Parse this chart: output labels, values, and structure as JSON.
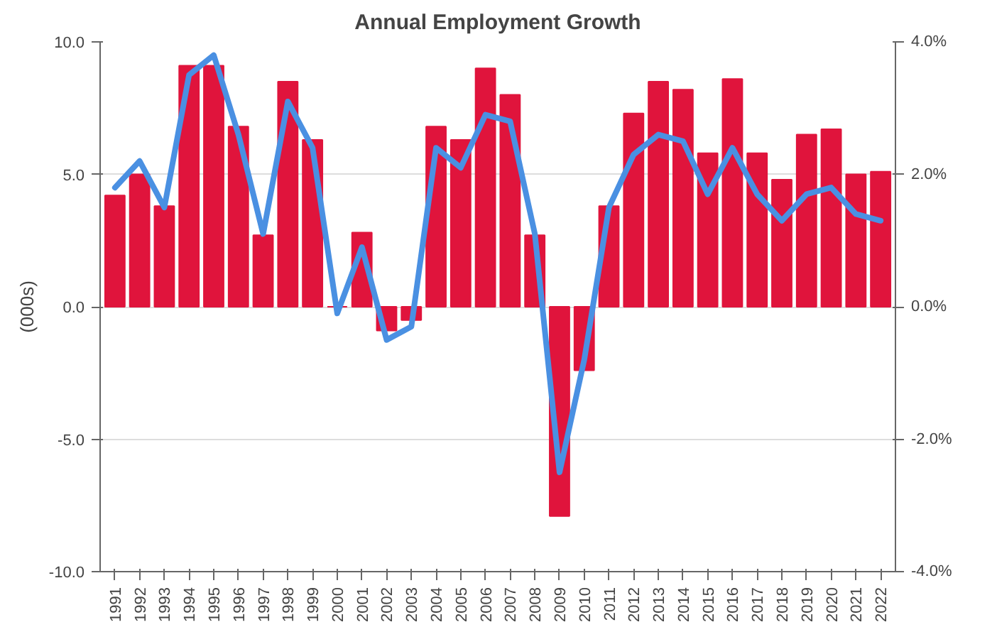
{
  "chart_data": {
    "type": "bar",
    "title": "Annual Employment Growth",
    "ylabel": "(000s)",
    "categories": [
      "1991",
      "1992",
      "1993",
      "1994",
      "1995",
      "1996",
      "1997",
      "1998",
      "1999",
      "2000",
      "2001",
      "2002",
      "2003",
      "2004",
      "2005",
      "2006",
      "2007",
      "2008",
      "2009",
      "2010",
      "2011",
      "2012",
      "2013",
      "2014",
      "2015",
      "2016",
      "2017",
      "2018",
      "2019",
      "2020",
      "2021",
      "2022"
    ],
    "series": [
      {
        "color": "#e0143c",
        "values": [
          4.2,
          5.0,
          3.8,
          9.1,
          9.1,
          6.8,
          2.7,
          8.5,
          6.3,
          0.0,
          2.8,
          -0.9,
          -0.5,
          6.8,
          6.3,
          9.0,
          8.0,
          2.7,
          -7.9,
          -2.4,
          3.8,
          7.3,
          8.5,
          8.2,
          5.8,
          8.6,
          5.8,
          4.8,
          6.5,
          6.7,
          5.0,
          5.1
        ]
      },
      {
        "type": "line",
        "axis": "y2",
        "color": "#4a90e2",
        "values": [
          1.8,
          2.2,
          1.5,
          3.5,
          3.8,
          2.6,
          1.1,
          3.1,
          2.4,
          -0.1,
          0.9,
          -0.5,
          -0.3,
          2.4,
          2.1,
          2.9,
          2.8,
          1.1,
          -2.5,
          -0.8,
          1.5,
          2.3,
          2.6,
          2.5,
          1.7,
          2.4,
          1.7,
          1.3,
          1.7,
          1.8,
          1.4,
          1.3
        ]
      }
    ],
    "ylim": [
      -10,
      10
    ],
    "yticks": [
      {
        "value": -10,
        "label": "-10.0"
      },
      {
        "value": -5,
        "label": "-5.0"
      },
      {
        "value": 0,
        "label": "0.0"
      },
      {
        "value": 5,
        "label": "5.0"
      },
      {
        "value": 10,
        "label": "10.0"
      }
    ],
    "y2lim": [
      -4,
      4
    ],
    "y2ticks": [
      {
        "value": -4,
        "label": "-4.0%"
      },
      {
        "value": -2,
        "label": "-2.0%"
      },
      {
        "value": 0,
        "label": "0.0%"
      },
      {
        "value": 2,
        "label": "2.0%"
      },
      {
        "value": 4,
        "label": "4.0%"
      }
    ],
    "grid": "y",
    "line_style": "solid",
    "marker": "none"
  }
}
